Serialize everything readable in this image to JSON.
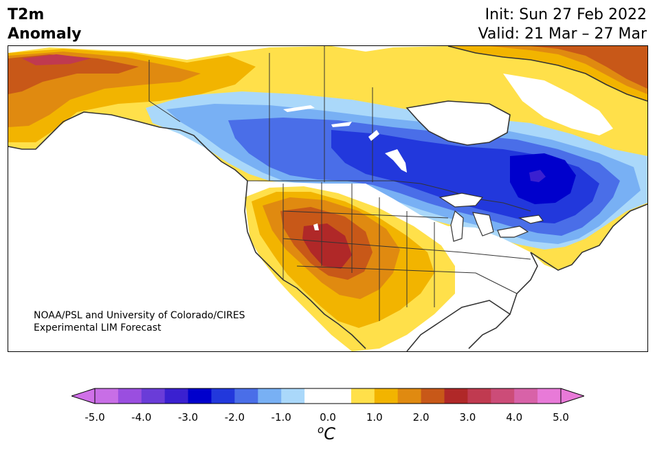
{
  "title": {
    "variable": "T2m",
    "subtitle": "Anomaly",
    "init": "Init: Sun 27 Feb 2022",
    "valid": "Valid: 21 Mar – 27 Mar"
  },
  "credit": {
    "line1": "NOAA/PSL and University of Colorado/CIRES",
    "line2": "Experimental LIM Forecast"
  },
  "colorbar": {
    "unit_base": "o",
    "unit_letter": "C",
    "labels": [
      "-5.0",
      "-4.0",
      "-3.0",
      "-2.0",
      "-1.0",
      "0.0",
      "1.0",
      "2.0",
      "3.0",
      "4.0",
      "5.0"
    ],
    "colors": [
      "#c86ee6",
      "#9a4ee0",
      "#6a3cd8",
      "#3a20d0",
      "#0000cc",
      "#2238dc",
      "#4a6ee8",
      "#78b0f4",
      "#aad8fa",
      "#ffffff",
      "#ffffff",
      "#ffe04a",
      "#f2b400",
      "#e08a10",
      "#c85818",
      "#b02828",
      "#c03a50",
      "#cc4c78",
      "#d862a8",
      "#e87ad8"
    ],
    "low_extend_color": "#d070e8",
    "high_extend_color": "#e87ad8"
  },
  "map": {
    "colors": {
      "ocean": "#ffffff",
      "neg1": "#aad8fa",
      "neg15": "#78b0f4",
      "neg2": "#4a6ee8",
      "neg25": "#2238dc",
      "neg3": "#0000cc",
      "neg35": "#3a20d0",
      "pos05": "#ffe04a",
      "pos1": "#f2b400",
      "pos15": "#e08a10",
      "pos2": "#c85818",
      "pos25": "#b02828",
      "pos3": "#c03a50",
      "border": "#333333"
    }
  }
}
